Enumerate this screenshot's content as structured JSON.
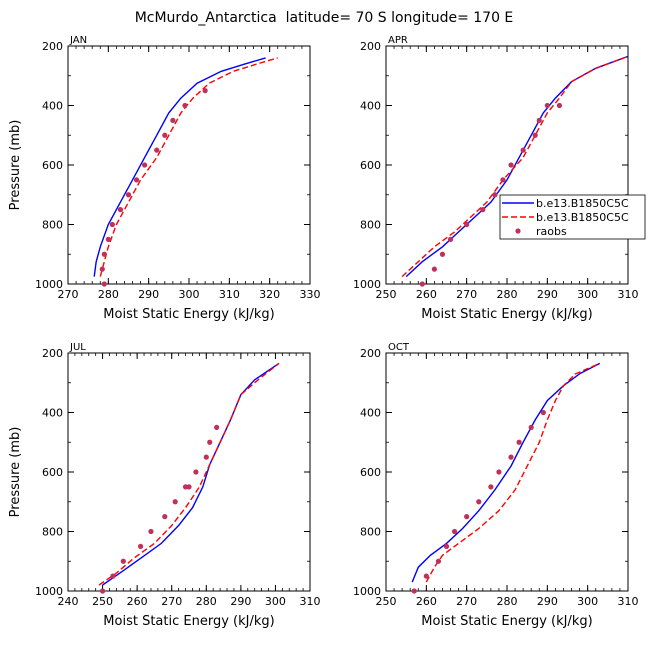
{
  "figure": {
    "title": "McMurdo_Antarctica  latitude= 70 S longitude= 170 E"
  },
  "colors": {
    "model1": "#0000ff",
    "model2": "#ff0000",
    "raobs": "#c0305a"
  },
  "legend": {
    "panel": "APR",
    "items": [
      {
        "label": "b.e13.B1850C5C",
        "style": "solid",
        "color": "#0000ff"
      },
      {
        "label": "b.e13.B1850C5C",
        "style": "dashed",
        "color": "#ff0000"
      },
      {
        "label": "raobs",
        "style": "marker",
        "color": "#c0305a"
      }
    ]
  },
  "chart_data": [
    {
      "type": "line",
      "panel": "JAN",
      "title": "JAN",
      "xlabel": "Moist Static Energy (kJ/kg)",
      "ylabel": "Pressure (mb)",
      "xlim": [
        270,
        330
      ],
      "ylim": [
        1000,
        200
      ],
      "y_inverted": true,
      "xticks": [
        270,
        280,
        290,
        300,
        310,
        320,
        330
      ],
      "yticks": [
        200,
        400,
        600,
        800,
        1000
      ],
      "series": [
        {
          "name": "b.e13.B1850C5C",
          "style": "solid",
          "x": [
            276.5,
            277,
            278,
            280,
            283,
            286,
            289,
            292,
            295,
            298,
            302,
            308,
            314,
            319
          ],
          "y": [
            975,
            925,
            875,
            800,
            725,
            650,
            575,
            500,
            425,
            375,
            325,
            285,
            260,
            240
          ]
        },
        {
          "name": "b.e13.B1850C5C",
          "style": "dashed",
          "x": [
            278,
            279,
            280,
            282,
            285,
            288,
            292,
            295,
            298,
            301,
            305,
            311,
            317,
            322
          ],
          "y": [
            975,
            925,
            875,
            800,
            725,
            650,
            575,
            500,
            425,
            375,
            325,
            285,
            260,
            240
          ]
        },
        {
          "name": "raobs",
          "style": "marker",
          "x": [
            279,
            278.5,
            279,
            280,
            281,
            283,
            285,
            287,
            289,
            292,
            294,
            296,
            299,
            304
          ],
          "y": [
            1000,
            950,
            900,
            850,
            800,
            750,
            700,
            650,
            600,
            550,
            500,
            450,
            400,
            350
          ]
        }
      ]
    },
    {
      "type": "line",
      "panel": "APR",
      "title": "APR",
      "xlabel": "Moist Static Energy (kJ/kg)",
      "ylabel": "",
      "xlim": [
        250,
        310
      ],
      "ylim": [
        1000,
        200
      ],
      "y_inverted": true,
      "xticks": [
        250,
        260,
        270,
        280,
        290,
        300,
        310
      ],
      "yticks": [
        200,
        400,
        600,
        800,
        1000
      ],
      "series": [
        {
          "name": "b.e13.B1850C5C",
          "style": "solid",
          "x": [
            255,
            259,
            264,
            268,
            272,
            276,
            280,
            283,
            286,
            289,
            292,
            296,
            302,
            310
          ],
          "y": [
            975,
            925,
            875,
            825,
            775,
            725,
            650,
            575,
            500,
            425,
            375,
            320,
            275,
            235
          ]
        },
        {
          "name": "b.e13.B1850C5C",
          "style": "dashed",
          "x": [
            254,
            258,
            262,
            267,
            271,
            275,
            279,
            284,
            287,
            290,
            293,
            296,
            302,
            310
          ],
          "y": [
            975,
            925,
            875,
            825,
            775,
            725,
            650,
            575,
            500,
            425,
            375,
            320,
            275,
            235
          ]
        },
        {
          "name": "raobs",
          "style": "marker",
          "x": [
            259,
            262,
            264,
            266,
            270,
            274,
            277,
            279,
            281,
            284,
            287,
            288,
            290,
            293
          ],
          "y": [
            1000,
            950,
            900,
            850,
            800,
            750,
            700,
            650,
            600,
            550,
            500,
            450,
            400,
            400
          ]
        }
      ]
    },
    {
      "type": "line",
      "panel": "JUL",
      "title": "JUL",
      "xlabel": "Moist Static Energy (kJ/kg)",
      "ylabel": "Pressure (mb)",
      "xlim": [
        240,
        310
      ],
      "ylim": [
        1000,
        200
      ],
      "y_inverted": true,
      "xticks": [
        240,
        250,
        260,
        270,
        280,
        290,
        300,
        310
      ],
      "yticks": [
        200,
        400,
        600,
        800,
        1000
      ],
      "series": [
        {
          "name": "b.e13.B1850C5C",
          "style": "solid",
          "x": [
            250,
            255,
            261,
            267,
            272,
            276,
            279,
            281,
            284,
            287,
            290,
            294,
            301
          ],
          "y": [
            980,
            940,
            890,
            840,
            780,
            720,
            650,
            575,
            500,
            425,
            340,
            290,
            235
          ]
        },
        {
          "name": "b.e13.B1850C5C",
          "style": "dashed",
          "x": [
            249,
            254,
            259,
            265,
            270,
            274,
            278,
            281,
            284,
            287,
            290,
            295,
            301
          ],
          "y": [
            980,
            940,
            890,
            840,
            780,
            720,
            650,
            575,
            500,
            425,
            340,
            290,
            235
          ]
        },
        {
          "name": "raobs",
          "style": "marker",
          "x": [
            250,
            253,
            256,
            261,
            264,
            268,
            271,
            274,
            275,
            277,
            280,
            281,
            283
          ],
          "y": [
            1000,
            950,
            900,
            850,
            800,
            750,
            700,
            650,
            650,
            600,
            550,
            500,
            450
          ]
        }
      ]
    },
    {
      "type": "line",
      "panel": "OCT",
      "title": "OCT",
      "xlabel": "Moist Static Energy (kJ/kg)",
      "ylabel": "",
      "xlim": [
        250,
        310
      ],
      "ylim": [
        1000,
        200
      ],
      "y_inverted": true,
      "xticks": [
        250,
        260,
        270,
        280,
        290,
        300,
        310
      ],
      "yticks": [
        200,
        400,
        600,
        800,
        1000
      ],
      "series": [
        {
          "name": "b.e13.B1850C5C",
          "style": "solid",
          "x": [
            256.5,
            258,
            261,
            265,
            269,
            273,
            277,
            281,
            284,
            287,
            290,
            294,
            298,
            303
          ],
          "y": [
            970,
            920,
            880,
            840,
            790,
            730,
            660,
            580,
            500,
            425,
            360,
            310,
            270,
            235
          ]
        },
        {
          "name": "b.e13.B1850C5C",
          "style": "dashed",
          "x": [
            260,
            262,
            264,
            268,
            273,
            278,
            282,
            285,
            288,
            290,
            292,
            294,
            297,
            303
          ],
          "y": [
            970,
            920,
            880,
            840,
            790,
            730,
            660,
            580,
            500,
            425,
            360,
            310,
            270,
            235
          ]
        },
        {
          "name": "raobs",
          "style": "marker",
          "x": [
            257,
            260,
            263,
            265,
            267,
            270,
            273,
            276,
            278,
            281,
            283,
            286,
            289
          ],
          "y": [
            1000,
            950,
            900,
            850,
            800,
            750,
            700,
            650,
            600,
            550,
            500,
            450,
            400
          ]
        }
      ]
    }
  ]
}
